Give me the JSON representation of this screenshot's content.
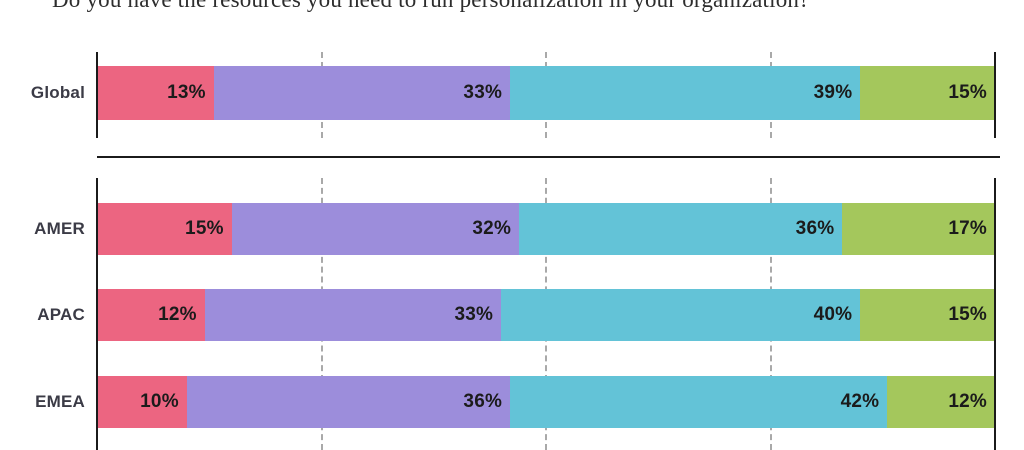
{
  "title": "Do you have the resources you need to run personalization in your organization?",
  "chart_data": {
    "type": "bar",
    "orientation": "horizontal",
    "stacked": true,
    "value_suffix": "%",
    "xlim": [
      0,
      100
    ],
    "gridlines_pct": [
      25,
      50,
      75
    ],
    "grid_style": "dashed",
    "legend": "none",
    "categories": [
      "Global",
      "AMER",
      "APAC",
      "EMEA"
    ],
    "groups": [
      {
        "rows": [
          "Global"
        ]
      },
      {
        "rows": [
          "AMER",
          "APAC",
          "EMEA"
        ]
      }
    ],
    "series": [
      {
        "name": "pink",
        "color": "#EC6581",
        "values": [
          13,
          15,
          12,
          10
        ]
      },
      {
        "name": "purple",
        "color": "#9C8DDB",
        "values": [
          33,
          32,
          33,
          36
        ]
      },
      {
        "name": "teal",
        "color": "#63C3D7",
        "values": [
          39,
          36,
          40,
          42
        ]
      },
      {
        "name": "green",
        "color": "#A4C75C",
        "values": [
          15,
          17,
          15,
          12
        ]
      }
    ]
  },
  "colors": {
    "background": "#FFFFFF",
    "axis": "#1B1B1B",
    "gridline": "#A9A9A9",
    "separator": "#1B1B1B",
    "value_label": "#1B1B1B",
    "category_label": "#3B3B46",
    "title": "#2D2D2D"
  }
}
